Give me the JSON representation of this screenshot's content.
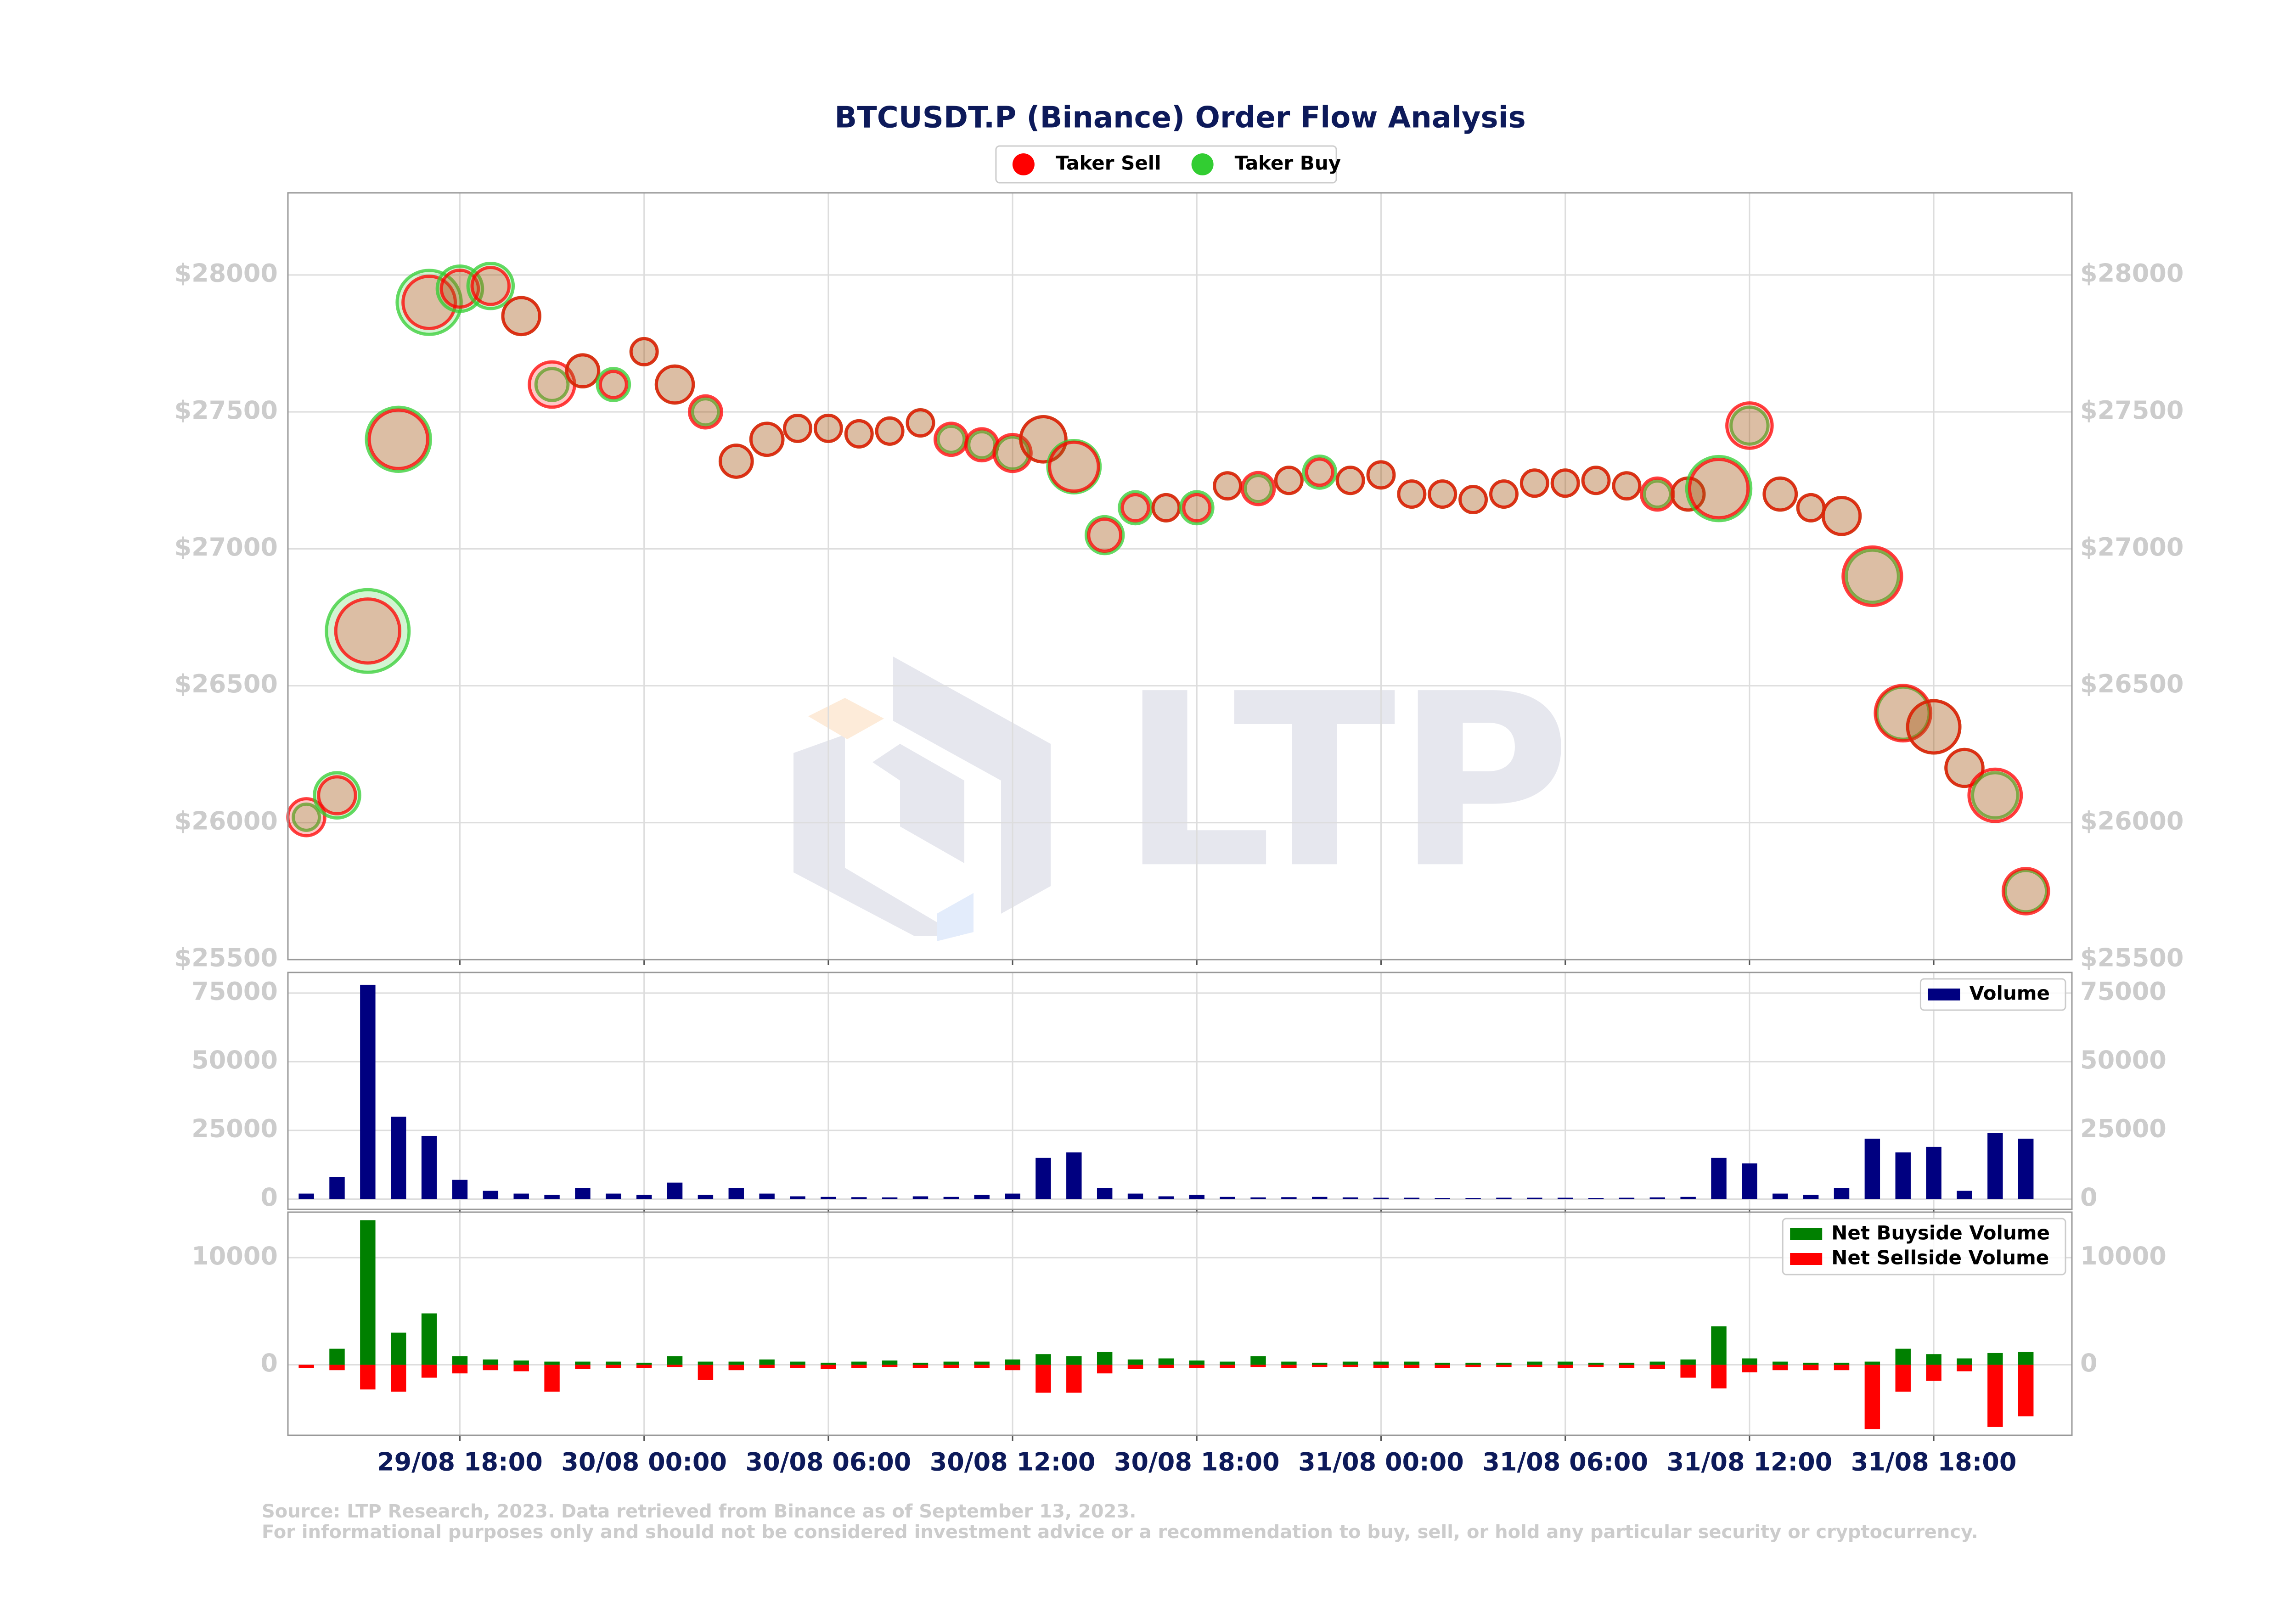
{
  "chart_data": [
    {
      "type": "scatter",
      "title": "BTCUSDT.P (Binance) Order Flow Analysis",
      "x": [
        "29/08 13:00",
        "29/08 14:00",
        "29/08 15:00",
        "29/08 16:00",
        "29/08 17:00",
        "29/08 18:00",
        "29/08 19:00",
        "29/08 20:00",
        "29/08 21:00",
        "29/08 22:00",
        "29/08 23:00",
        "30/08 00:00",
        "30/08 01:00",
        "30/08 02:00",
        "30/08 03:00",
        "30/08 04:00",
        "30/08 05:00",
        "30/08 06:00",
        "30/08 07:00",
        "30/08 08:00",
        "30/08 09:00",
        "30/08 10:00",
        "30/08 11:00",
        "30/08 12:00",
        "30/08 13:00",
        "30/08 14:00",
        "30/08 15:00",
        "30/08 16:00",
        "30/08 17:00",
        "30/08 18:00",
        "30/08 19:00",
        "30/08 20:00",
        "30/08 21:00",
        "30/08 22:00",
        "30/08 23:00",
        "31/08 00:00",
        "31/08 01:00",
        "31/08 02:00",
        "31/08 03:00",
        "31/08 04:00",
        "31/08 05:00",
        "31/08 06:00",
        "31/08 07:00",
        "31/08 08:00",
        "31/08 09:00",
        "31/08 10:00",
        "31/08 11:00",
        "31/08 12:00",
        "31/08 13:00",
        "31/08 14:00",
        "31/08 15:00",
        "31/08 16:00",
        "31/08 17:00",
        "31/08 18:00",
        "31/08 19:00",
        "31/08 20:00",
        "31/08 21:00"
      ],
      "series": [
        {
          "name": "Taker Sell",
          "color": "#ff0000",
          "values": [
            26020,
            26100,
            26700,
            27400,
            27900,
            27950,
            27960,
            27850,
            27600,
            27650,
            27600,
            27720,
            27600,
            27500,
            27320,
            27400,
            27440,
            27440,
            27420,
            27430,
            27460,
            27400,
            27380,
            27350,
            27400,
            27300,
            27050,
            27150,
            27150,
            27150,
            27230,
            27220,
            27250,
            27280,
            27250,
            27270,
            27200,
            27200,
            27180,
            27200,
            27240,
            27240,
            27250,
            27230,
            27200,
            27200,
            27220,
            27450,
            27200,
            27150,
            27120,
            26900,
            26400,
            26350,
            26200,
            26100,
            25750
          ],
          "sizes": [
            20,
            20,
            60,
            50,
            40,
            20,
            20,
            20,
            30,
            15,
            10,
            10,
            20,
            15,
            15,
            15,
            10,
            10,
            10,
            10,
            10,
            15,
            15,
            20,
            30,
            35,
            15,
            10,
            10,
            10,
            10,
            15,
            10,
            10,
            10,
            10,
            10,
            10,
            10,
            10,
            10,
            10,
            10,
            10,
            15,
            15,
            50,
            30,
            15,
            10,
            20,
            50,
            45,
            40,
            20,
            40,
            30
          ]
        },
        {
          "name": "Taker Buy",
          "color": "#32cd32",
          "values": [
            26020,
            26100,
            26700,
            27400,
            27900,
            27950,
            27960,
            27850,
            27600,
            27650,
            27600,
            27720,
            27600,
            27500,
            27320,
            27400,
            27440,
            27440,
            27420,
            27430,
            27460,
            27400,
            27380,
            27350,
            27400,
            27300,
            27050,
            27150,
            27150,
            27150,
            27230,
            27220,
            27250,
            27280,
            27250,
            27270,
            27200,
            27200,
            27180,
            27200,
            27240,
            27240,
            27250,
            27230,
            27200,
            27200,
            27220,
            27450,
            27200,
            27150,
            27120,
            26900,
            26400,
            26350,
            26200,
            26100,
            25750
          ],
          "sizes": [
            10,
            30,
            100,
            60,
            60,
            30,
            30,
            20,
            15,
            15,
            15,
            10,
            20,
            10,
            15,
            15,
            10,
            10,
            10,
            10,
            10,
            10,
            10,
            15,
            30,
            40,
            20,
            15,
            10,
            15,
            10,
            10,
            10,
            15,
            10,
            10,
            10,
            10,
            10,
            10,
            10,
            10,
            10,
            10,
            10,
            15,
            60,
            20,
            15,
            10,
            20,
            40,
            40,
            40,
            20,
            30,
            25
          ]
        }
      ],
      "xlim": [
        "29/08 12:24",
        "31/08 22:30"
      ],
      "xticks": [
        "29/08 18:00",
        "30/08 00:00",
        "30/08 06:00",
        "30/08 12:00",
        "30/08 18:00",
        "31/08 00:00",
        "31/08 06:00",
        "31/08 12:00",
        "31/08 18:00"
      ],
      "ylim": [
        25500,
        28300
      ],
      "yticks": [
        {
          "value": 25500,
          "label": "$25500"
        },
        {
          "value": 26000,
          "label": "$26000"
        },
        {
          "value": 26500,
          "label": "$26500"
        },
        {
          "value": 27000,
          "label": "$27000"
        },
        {
          "value": 27500,
          "label": "$27500"
        },
        {
          "value": 28000,
          "label": "$28000"
        }
      ],
      "grid": true,
      "legend": "upper center"
    },
    {
      "type": "bar",
      "x": [
        "29/08 13:00",
        "29/08 14:00",
        "29/08 15:00",
        "29/08 16:00",
        "29/08 17:00",
        "29/08 18:00",
        "29/08 19:00",
        "29/08 20:00",
        "29/08 21:00",
        "29/08 22:00",
        "29/08 23:00",
        "30/08 00:00",
        "30/08 01:00",
        "30/08 02:00",
        "30/08 03:00",
        "30/08 04:00",
        "30/08 05:00",
        "30/08 06:00",
        "30/08 07:00",
        "30/08 08:00",
        "30/08 09:00",
        "30/08 10:00",
        "30/08 11:00",
        "30/08 12:00",
        "30/08 13:00",
        "30/08 14:00",
        "30/08 15:00",
        "30/08 16:00",
        "30/08 17:00",
        "30/08 18:00",
        "30/08 19:00",
        "30/08 20:00",
        "30/08 21:00",
        "30/08 22:00",
        "30/08 23:00",
        "31/08 00:00",
        "31/08 01:00",
        "31/08 02:00",
        "31/08 03:00",
        "31/08 04:00",
        "31/08 05:00",
        "31/08 06:00",
        "31/08 07:00",
        "31/08 08:00",
        "31/08 09:00",
        "31/08 10:00",
        "31/08 11:00",
        "31/08 12:00",
        "31/08 13:00",
        "31/08 14:00",
        "31/08 15:00",
        "31/08 16:00",
        "31/08 17:00",
        "31/08 18:00",
        "31/08 19:00",
        "31/08 20:00",
        "31/08 21:00"
      ],
      "series": [
        {
          "name": "Volume",
          "color": "#000080",
          "values": [
            2000,
            8000,
            78000,
            30000,
            23000,
            7000,
            3000,
            2000,
            1500,
            4000,
            2000,
            1500,
            6000,
            1500,
            4000,
            2000,
            1000,
            800,
            700,
            600,
            1000,
            800,
            1500,
            2000,
            15000,
            17000,
            4000,
            2000,
            1000,
            1500,
            800,
            600,
            700,
            800,
            600,
            500,
            500,
            400,
            400,
            500,
            500,
            500,
            400,
            500,
            600,
            800,
            15000,
            13000,
            2000,
            1500,
            4000,
            22000,
            17000,
            19000,
            3000,
            24000,
            22000
          ]
        }
      ],
      "xlim": [
        "29/08 12:24",
        "31/08 22:30"
      ],
      "xticks": [
        "29/08 18:00",
        "30/08 00:00",
        "30/08 06:00",
        "30/08 12:00",
        "30/08 18:00",
        "31/08 00:00",
        "31/08 06:00",
        "31/08 12:00",
        "31/08 18:00"
      ],
      "ylim": [
        -3750,
        82500
      ],
      "yticks": [
        0,
        25000,
        50000,
        75000
      ],
      "grid": true,
      "legend": "upper right"
    },
    {
      "type": "bar",
      "x": [
        "29/08 13:00",
        "29/08 14:00",
        "29/08 15:00",
        "29/08 16:00",
        "29/08 17:00",
        "29/08 18:00",
        "29/08 19:00",
        "29/08 20:00",
        "29/08 21:00",
        "29/08 22:00",
        "29/08 23:00",
        "30/08 00:00",
        "30/08 01:00",
        "30/08 02:00",
        "30/08 03:00",
        "30/08 04:00",
        "30/08 05:00",
        "30/08 06:00",
        "30/08 07:00",
        "30/08 08:00",
        "30/08 09:00",
        "30/08 10:00",
        "30/08 11:00",
        "30/08 12:00",
        "30/08 13:00",
        "30/08 14:00",
        "30/08 15:00",
        "30/08 16:00",
        "30/08 17:00",
        "30/08 18:00",
        "30/08 19:00",
        "30/08 20:00",
        "30/08 21:00",
        "30/08 22:00",
        "30/08 23:00",
        "31/08 00:00",
        "31/08 01:00",
        "31/08 02:00",
        "31/08 03:00",
        "31/08 04:00",
        "31/08 05:00",
        "31/08 06:00",
        "31/08 07:00",
        "31/08 08:00",
        "31/08 09:00",
        "31/08 10:00",
        "31/08 11:00",
        "31/08 12:00",
        "31/08 13:00",
        "31/08 14:00",
        "31/08 15:00",
        "31/08 16:00",
        "31/08 17:00",
        "31/08 18:00",
        "31/08 19:00",
        "31/08 20:00",
        "31/08 21:00"
      ],
      "series": [
        {
          "name": "Net Buyside Volume",
          "color": "#008000",
          "values": [
            0,
            1500,
            13500,
            3000,
            4800,
            800,
            500,
            400,
            300,
            300,
            300,
            200,
            800,
            300,
            300,
            500,
            300,
            200,
            300,
            400,
            200,
            300,
            300,
            500,
            1000,
            800,
            1200,
            500,
            600,
            400,
            300,
            800,
            300,
            200,
            300,
            300,
            300,
            200,
            200,
            200,
            300,
            300,
            200,
            200,
            300,
            500,
            3600,
            600,
            300,
            200,
            200,
            300,
            1500,
            1000,
            600,
            1100,
            1200
          ]
        },
        {
          "name": "Net Sellside Volume",
          "color": "#ff0000",
          "values": [
            -300,
            -500,
            -2300,
            -2500,
            -1200,
            -800,
            -500,
            -600,
            -2500,
            -400,
            -300,
            -300,
            -200,
            -1400,
            -500,
            -300,
            -300,
            -400,
            -300,
            -200,
            -300,
            -300,
            -300,
            -500,
            -2600,
            -2600,
            -800,
            -400,
            -300,
            -300,
            -300,
            -200,
            -300,
            -200,
            -200,
            -300,
            -300,
            -300,
            -200,
            -200,
            -200,
            -300,
            -200,
            -300,
            -400,
            -1200,
            -2200,
            -700,
            -500,
            -500,
            -500,
            -6000,
            -2500,
            -1500,
            -600,
            -5800,
            -4800
          ]
        }
      ],
      "xlim": [
        "29/08 12:24",
        "31/08 22:30"
      ],
      "xticks": [
        "29/08 18:00",
        "30/08 00:00",
        "30/08 06:00",
        "30/08 12:00",
        "30/08 18:00",
        "31/08 00:00",
        "31/08 06:00",
        "31/08 12:00",
        "31/08 18:00"
      ],
      "ylim": [
        -6575,
        14250
      ],
      "yticks": [
        0,
        10000
      ],
      "grid": true,
      "legend": "upper right"
    }
  ],
  "watermark": "LTP",
  "source": [
    "Source: LTP Research, 2023. Data retrieved from Binance as of September 13, 2023.",
    "For informational purposes only and should not be considered investment advice or a recommendation to buy, sell, or hold any particular security or cryptocurrency."
  ]
}
